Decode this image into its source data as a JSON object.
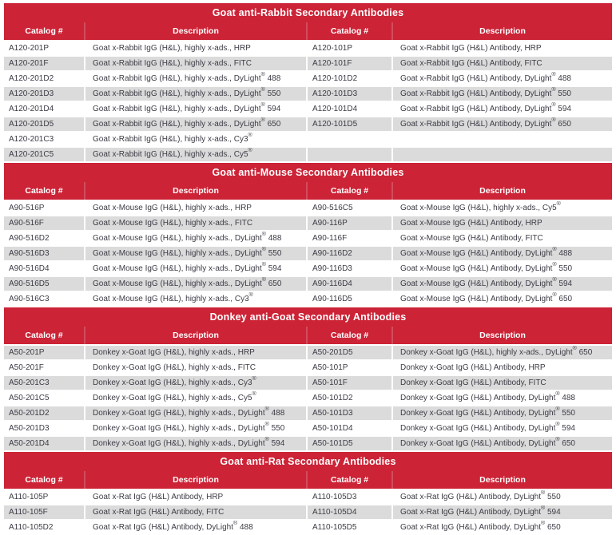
{
  "colors": {
    "banner_red": "#cc2336",
    "header_divider": "#d24c5e",
    "header_text": "#ffffff",
    "row_gray": "#dbdbdb",
    "row_white": "#ffffff",
    "body_text": "#3c3b45"
  },
  "column_headers": [
    "Catalog #",
    "Description",
    "Catalog #",
    "Description"
  ],
  "sections": [
    {
      "title": "Goat anti-Rabbit Secondary Antibodies",
      "rows": [
        [
          "A120-201P",
          "Goat x-Rabbit IgG (H&L), highly x-ads., HRP",
          "A120-101P",
          "Goat x-Rabbit IgG (H&L) Antibody, HRP"
        ],
        [
          "A120-201F",
          "Goat x-Rabbit IgG (H&L), highly x-ads., FITC",
          "A120-101F",
          "Goat x-Rabbit IgG (H&L) Antibody, FITC"
        ],
        [
          "A120-201D2",
          "Goat x-Rabbit IgG (H&L), highly x-ads., DyLight® 488",
          "A120-101D2",
          "Goat x-Rabbit IgG (H&L) Antibody, DyLight® 488"
        ],
        [
          "A120-201D3",
          "Goat x-Rabbit IgG (H&L), highly x-ads., DyLight® 550",
          "A120-101D3",
          "Goat x-Rabbit IgG (H&L) Antibody, DyLight® 550"
        ],
        [
          "A120-201D4",
          "Goat x-Rabbit IgG (H&L), highly x-ads., DyLight® 594",
          "A120-101D4",
          "Goat x-Rabbit IgG (H&L) Antibody, DyLight® 594"
        ],
        [
          "A120-201D5",
          "Goat x-Rabbit IgG (H&L), highly x-ads., DyLight® 650",
          "A120-101D5",
          "Goat x-Rabbit IgG (H&L) Antibody, DyLight® 650"
        ],
        [
          "A120-201C3",
          "Goat x-Rabbit IgG (H&L), highly x-ads., Cy3®",
          "",
          ""
        ],
        [
          "A120-201C5",
          "Goat x-Rabbit IgG (H&L), highly x-ads., Cy5®",
          "",
          ""
        ]
      ]
    },
    {
      "title": "Goat anti-Mouse Secondary Antibodies",
      "rows": [
        [
          "A90-516P",
          "Goat x-Mouse IgG (H&L), highly x-ads., HRP",
          "A90-516C5",
          "Goat x-Mouse IgG (H&L), highly x-ads., Cy5®"
        ],
        [
          "A90-516F",
          "Goat x-Mouse IgG (H&L), highly x-ads., FITC",
          "A90-116P",
          "Goat x-Mouse IgG (H&L) Antibody, HRP"
        ],
        [
          "A90-516D2",
          "Goat x-Mouse IgG (H&L), highly x-ads., DyLight® 488",
          "A90-116F",
          "Goat x-Mouse IgG (H&L) Antibody, FITC"
        ],
        [
          "A90-516D3",
          "Goat x-Mouse IgG (H&L), highly x-ads., DyLight® 550",
          "A90-116D2",
          "Goat x-Mouse IgG (H&L) Antibody, DyLight® 488"
        ],
        [
          "A90-516D4",
          "Goat x-Mouse IgG (H&L), highly x-ads., DyLight® 594",
          "A90-116D3",
          "Goat x-Mouse IgG (H&L) Antibody, DyLight® 550"
        ],
        [
          "A90-516D5",
          "Goat x-Mouse IgG (H&L), highly x-ads., DyLight® 650",
          "A90-116D4",
          "Goat x-Mouse IgG (H&L) Antibody, DyLight® 594"
        ],
        [
          "A90-516C3",
          "Goat x-Mouse IgG (H&L), highly x-ads., Cy3®",
          "A90-116D5",
          "Goat x-Mouse IgG (H&L) Antibody, DyLight® 650"
        ]
      ]
    },
    {
      "title": "Donkey anti-Goat Secondary Antibodies",
      "rows": [
        [
          "A50-201P",
          "Donkey x-Goat IgG (H&L), highly x-ads., HRP",
          "A50-201D5",
          "Donkey x-Goat IgG (H&L), highly x-ads., DyLight® 650"
        ],
        [
          "A50-201F",
          "Donkey x-Goat IgG (H&L), highly x-ads., FITC",
          "A50-101P",
          "Donkey x-Goat IgG (H&L) Antibody, HRP"
        ],
        [
          "A50-201C3",
          "Donkey x-Goat IgG (H&L), highly x-ads., Cy3®",
          "A50-101F",
          "Donkey x-Goat IgG (H&L) Antibody, FITC"
        ],
        [
          "A50-201C5",
          "Donkey x-Goat IgG (H&L), highly x-ads., Cy5®",
          "A50-101D2",
          "Donkey x-Goat IgG (H&L) Antibody, DyLight® 488"
        ],
        [
          "A50-201D2",
          "Donkey x-Goat IgG (H&L), highly x-ads., DyLight® 488",
          "A50-101D3",
          "Donkey x-Goat IgG (H&L) Antibody, DyLight® 550"
        ],
        [
          "A50-201D3",
          "Donkey x-Goat IgG (H&L), highly x-ads., DyLight® 550",
          "A50-101D4",
          "Donkey x-Goat IgG (H&L) Antibody, DyLight® 594"
        ],
        [
          "A50-201D4",
          "Donkey x-Goat IgG (H&L), highly x-ads., DyLight® 594",
          "A50-101D5",
          "Donkey x-Goat IgG (H&L) Antibody, DyLight® 650"
        ]
      ]
    },
    {
      "title": "Goat anti-Rat Secondary Antibodies",
      "rows": [
        [
          "A110-105P",
          "Goat x-Rat IgG (H&L) Antibody, HRP",
          "A110-105D3",
          "Goat x-Rat IgG (H&L) Antibody, DyLight® 550"
        ],
        [
          "A110-105F",
          "Goat x-Rat IgG (H&L) Antibody, FITC",
          "A110-105D4",
          "Goat x-Rat IgG (H&L) Antibody, DyLight® 594"
        ],
        [
          "A110-105D2",
          "Goat x-Rat IgG (H&L) Antibody, DyLight® 488",
          "A110-105D5",
          "Goat x-Rat IgG (H&L) Antibody, DyLight® 650"
        ]
      ]
    }
  ]
}
